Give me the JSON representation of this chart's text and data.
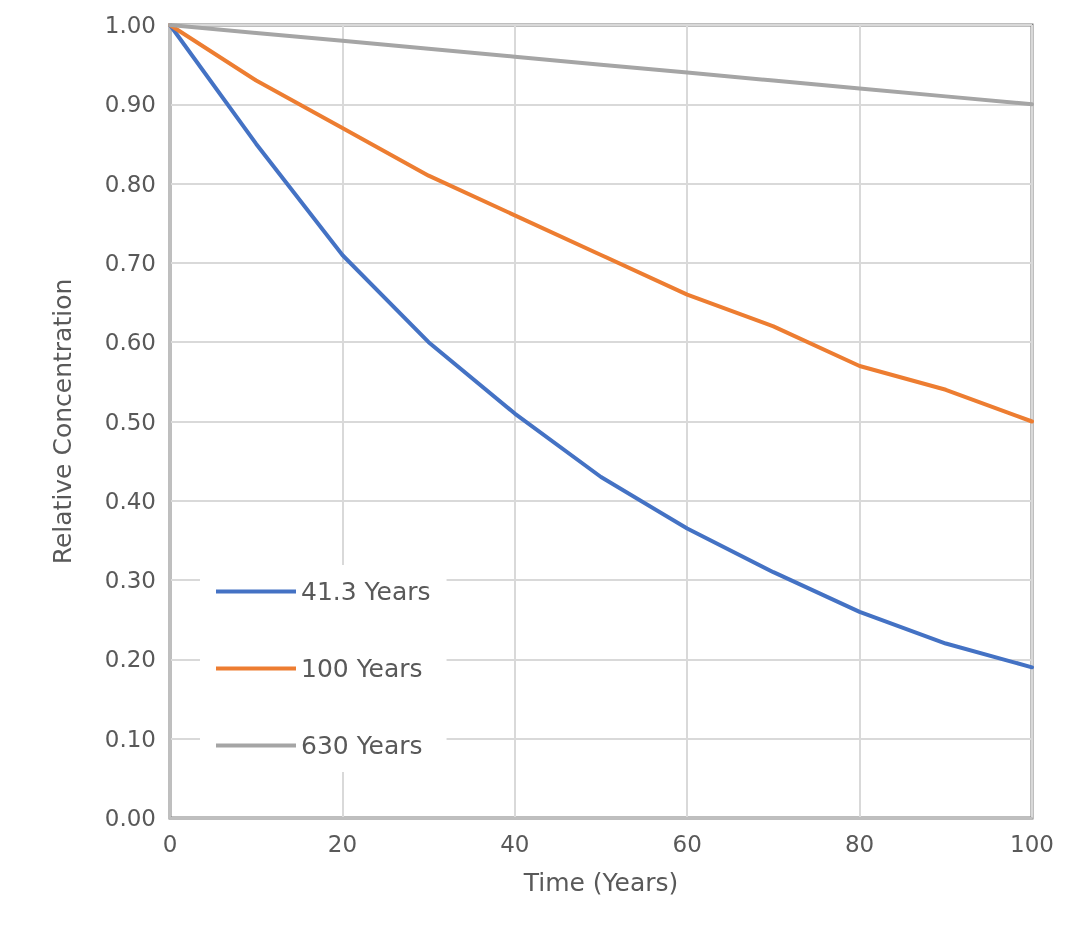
{
  "chart_data": {
    "type": "line",
    "xlabel": "Time (Years)",
    "ylabel": "Relative Concentration",
    "x": [
      0,
      10,
      20,
      30,
      40,
      50,
      60,
      70,
      80,
      90,
      100
    ],
    "series": [
      {
        "name": "41.3 Years",
        "color": "#4472c4",
        "values": [
          1.0,
          0.85,
          0.71,
          0.6,
          0.51,
          0.43,
          0.365,
          0.31,
          0.26,
          0.22,
          0.19
        ]
      },
      {
        "name": "100 Years",
        "color": "#ed7d31",
        "values": [
          1.0,
          0.93,
          0.87,
          0.81,
          0.76,
          0.71,
          0.66,
          0.62,
          0.57,
          0.54,
          0.5
        ]
      },
      {
        "name": "630 Years",
        "color": "#a5a5a5",
        "values": [
          1.0,
          0.99,
          0.98,
          0.97,
          0.96,
          0.95,
          0.94,
          0.93,
          0.92,
          0.91,
          0.9
        ]
      }
    ],
    "xlim": [
      0,
      100
    ],
    "xticks": [
      0,
      20,
      40,
      60,
      80,
      100
    ],
    "ylim": [
      0,
      1
    ],
    "yticks": [
      {
        "value": 0,
        "label": "0.00"
      },
      {
        "value": 0.1,
        "label": "0.10"
      },
      {
        "value": 0.2,
        "label": "0.20"
      },
      {
        "value": 0.3,
        "label": "0.30"
      },
      {
        "value": 0.4,
        "label": "0.40"
      },
      {
        "value": 0.5,
        "label": "0.50"
      },
      {
        "value": 0.6,
        "label": "0.60"
      },
      {
        "value": 0.7,
        "label": "0.70"
      },
      {
        "value": 0.8,
        "label": "0.80"
      },
      {
        "value": 0.9,
        "label": "0.90"
      },
      {
        "value": 1,
        "label": "1.00"
      }
    ],
    "grid": true,
    "legend": "bottom left",
    "marker": "none",
    "line_style": "solid"
  }
}
